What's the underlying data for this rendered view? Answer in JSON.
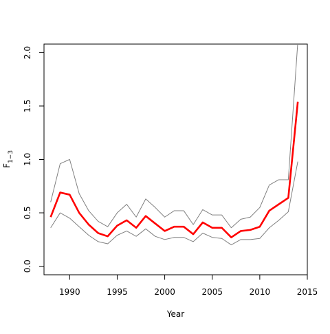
{
  "chart_data": {
    "type": "line",
    "xlabel": "Year",
    "ylabel_base": "F",
    "ylabel_sub": "1−3",
    "xlim": [
      1987.3,
      2015.0
    ],
    "ylim": [
      -0.08,
      2.08
    ],
    "x_ticks": [
      1990,
      1995,
      2000,
      2005,
      2010,
      2015
    ],
    "x_tick_labels": [
      "1990",
      "1995",
      "2000",
      "2005",
      "2010",
      "2015"
    ],
    "y_ticks": [
      0.0,
      0.5,
      1.0,
      1.5,
      2.0
    ],
    "y_tick_labels": [
      "0.0",
      "0.5",
      "1.0",
      "1.5",
      "2.0"
    ],
    "grid": false,
    "legend": "none",
    "x": [
      1988,
      1989,
      1990,
      1991,
      1992,
      1993,
      1994,
      1995,
      1996,
      1997,
      1998,
      1999,
      2000,
      2001,
      2002,
      2003,
      2004,
      2005,
      2006,
      2007,
      2008,
      2009,
      2010,
      2011,
      2012,
      2013,
      2014
    ],
    "series": [
      {
        "role": "upper",
        "color": "#808080",
        "values": [
          0.6,
          0.96,
          1.0,
          0.68,
          0.52,
          0.42,
          0.37,
          0.5,
          0.58,
          0.46,
          0.63,
          0.55,
          0.46,
          0.52,
          0.52,
          0.39,
          0.53,
          0.48,
          0.48,
          0.36,
          0.44,
          0.46,
          0.55,
          0.76,
          0.81,
          0.81,
          2.1
        ]
      },
      {
        "role": "estimate",
        "color": "#ff0000",
        "values": [
          0.46,
          0.69,
          0.67,
          0.5,
          0.39,
          0.31,
          0.28,
          0.38,
          0.43,
          0.36,
          0.47,
          0.4,
          0.33,
          0.37,
          0.37,
          0.3,
          0.41,
          0.36,
          0.36,
          0.27,
          0.33,
          0.34,
          0.37,
          0.52,
          0.58,
          0.64,
          1.54
        ]
      },
      {
        "role": "lower",
        "color": "#808080",
        "values": [
          0.36,
          0.5,
          0.45,
          0.37,
          0.29,
          0.23,
          0.21,
          0.29,
          0.33,
          0.28,
          0.35,
          0.28,
          0.25,
          0.27,
          0.27,
          0.23,
          0.31,
          0.27,
          0.26,
          0.2,
          0.25,
          0.25,
          0.26,
          0.36,
          0.43,
          0.51,
          0.98
        ]
      }
    ]
  }
}
